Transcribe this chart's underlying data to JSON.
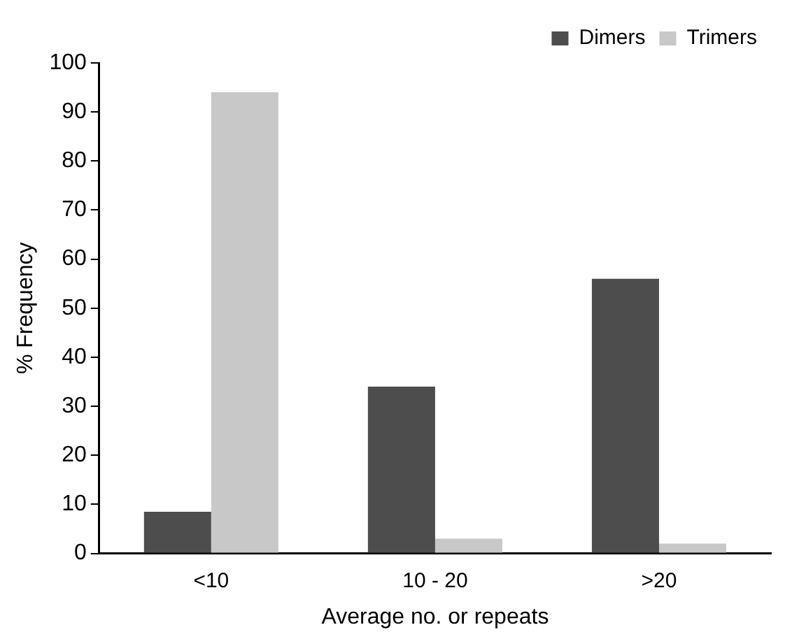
{
  "chart_data": {
    "type": "bar",
    "xlabel": "Average no. or repeats",
    "ylabel": "% Frequency",
    "categories": [
      "<10",
      "10 - 20",
      ">20"
    ],
    "series": [
      {
        "name": "Dimers",
        "color": "#4d4d4d",
        "values": [
          8.5,
          34,
          56
        ]
      },
      {
        "name": "Trimers",
        "color": "#c8c8c8",
        "values": [
          94,
          3,
          2
        ]
      }
    ],
    "ylim": [
      0,
      100
    ],
    "yticks": [
      0,
      10,
      20,
      30,
      40,
      50,
      60,
      70,
      80,
      90,
      100
    ],
    "grid": false,
    "legend": "top right"
  }
}
